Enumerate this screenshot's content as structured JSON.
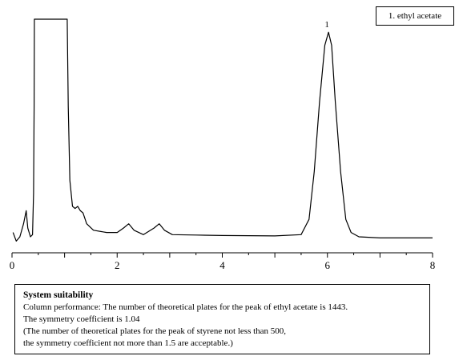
{
  "legend": {
    "entry": "1. ethyl acetate"
  },
  "system_suitability": {
    "title": "System suitability",
    "lines": [
      "Column performance: The number of theoretical plates for the peak of ethyl acetate is 1443.",
      "The symmetry coefficient is 1.04",
      "(The number of theoretical plates for the peak of styrene not less than 500,",
      "the symmetry coefficient not more than 1.5 are acceptable.)"
    ]
  },
  "chart_data": {
    "type": "line",
    "title": "",
    "xlabel": "",
    "ylabel": "",
    "xlim": [
      0,
      8
    ],
    "ylim": [
      0,
      100
    ],
    "x_ticks": [
      0,
      2,
      4,
      6,
      8
    ],
    "x_tick_labels": [
      "0",
      "2",
      "4",
      "6",
      "8"
    ],
    "grid": false,
    "legend_position": "top-right",
    "line_color": "#000000",
    "series": [
      {
        "values_x": [
          0.02,
          0.08,
          0.15,
          0.22,
          0.27,
          0.3,
          0.35,
          0.39,
          0.41,
          0.42,
          0.425,
          0.43,
          0.44,
          1.04,
          1.05,
          1.07,
          1.1,
          1.15,
          1.2,
          1.25,
          1.3,
          1.35,
          1.42,
          1.55,
          1.8,
          2.0,
          2.12,
          2.22,
          2.32,
          2.5,
          2.7,
          2.8,
          2.9,
          3.05,
          3.5,
          4.0,
          5.0,
          5.5,
          5.65,
          5.75,
          5.85,
          5.95,
          6.02,
          6.08,
          6.15,
          6.25,
          6.35,
          6.45,
          6.6,
          7.0,
          8.0
        ],
        "values_y": [
          2,
          -2,
          0,
          6,
          12,
          4,
          0,
          1,
          20,
          60,
          100,
          100,
          100,
          100,
          100,
          60,
          26,
          14,
          13,
          14,
          12,
          11,
          6,
          3,
          2,
          2,
          4,
          6,
          3,
          1,
          4,
          6,
          3,
          1,
          0.8,
          0.6,
          0.4,
          1,
          8,
          30,
          62,
          88,
          94,
          88,
          62,
          30,
          8,
          2,
          0,
          -0.5,
          -0.5
        ]
      }
    ],
    "annotations": [
      {
        "x": 6.02,
        "text": "1"
      }
    ]
  }
}
